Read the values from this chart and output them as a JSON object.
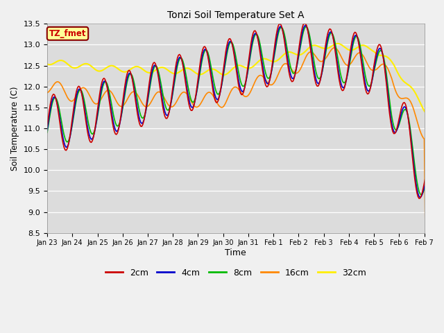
{
  "title": "Tonzi Soil Temperature Set A",
  "xlabel": "Time",
  "ylabel": "Soil Temperature (C)",
  "ylim": [
    8.5,
    13.5
  ],
  "bg_color": "#dcdcdc",
  "annotation_text": "TZ_fmet",
  "annotation_bg": "#ffff99",
  "annotation_border": "#8B0000",
  "annotation_text_color": "#cc0000",
  "series": {
    "2cm": {
      "color": "#cc0000",
      "lw": 1.2
    },
    "4cm": {
      "color": "#0000cc",
      "lw": 1.2
    },
    "8cm": {
      "color": "#00bb00",
      "lw": 1.2
    },
    "16cm": {
      "color": "#ff8800",
      "lw": 1.2
    },
    "32cm": {
      "color": "#ffee00",
      "lw": 1.5
    }
  },
  "xtick_labels": [
    "Jan 23",
    "Jan 24",
    "Jan 25",
    "Jan 26",
    "Jan 27",
    "Jan 28",
    "Jan 29",
    "Jan 30",
    "Jan 31",
    "Feb 1",
    "Feb 2",
    "Feb 3",
    "Feb 4",
    "Feb 5",
    "Feb 6",
    "Feb 7"
  ],
  "ytick_vals": [
    8.5,
    9.0,
    9.5,
    10.0,
    10.5,
    11.0,
    11.5,
    12.0,
    12.5,
    13.0,
    13.5
  ],
  "n_points": 384,
  "n_days": 16
}
